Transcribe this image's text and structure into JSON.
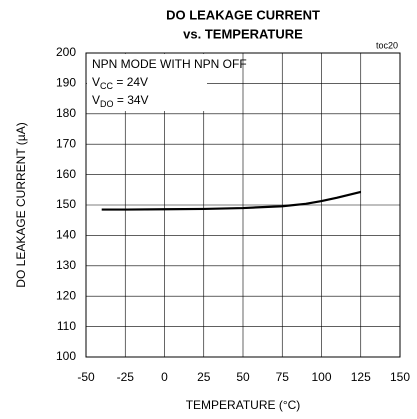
{
  "chart_data": {
    "type": "line",
    "title": [
      "DO LEAKAGE CURRENT",
      "vs. TEMPERATURE"
    ],
    "figure_id": "toc20",
    "xlabel": "TEMPERATURE (°C)",
    "ylabel": "DO LEAKAGE CURRENT (µA)",
    "annotations": [
      {
        "text": "NPN MODE WITH NPN OFF"
      },
      {
        "text": "V",
        "sub": "CC",
        "rest": " = 24V"
      },
      {
        "text": "V",
        "sub": "DO",
        "rest": " = 34V"
      }
    ],
    "x": [
      -40,
      -25,
      0,
      25,
      50,
      75,
      90,
      100,
      110,
      125
    ],
    "series": [
      {
        "color": "#000000",
        "values": [
          148.5,
          148.5,
          148.6,
          148.7,
          149.0,
          149.6,
          150.4,
          151.3,
          152.4,
          154.3
        ]
      }
    ],
    "xlim": [
      -50,
      150
    ],
    "xticks": [
      -50,
      -25,
      0,
      25,
      50,
      75,
      100,
      125,
      150
    ],
    "ylim": [
      100,
      200
    ],
    "yticks": [
      100,
      110,
      120,
      130,
      140,
      150,
      160,
      170,
      180,
      190,
      200
    ],
    "grid": true
  }
}
